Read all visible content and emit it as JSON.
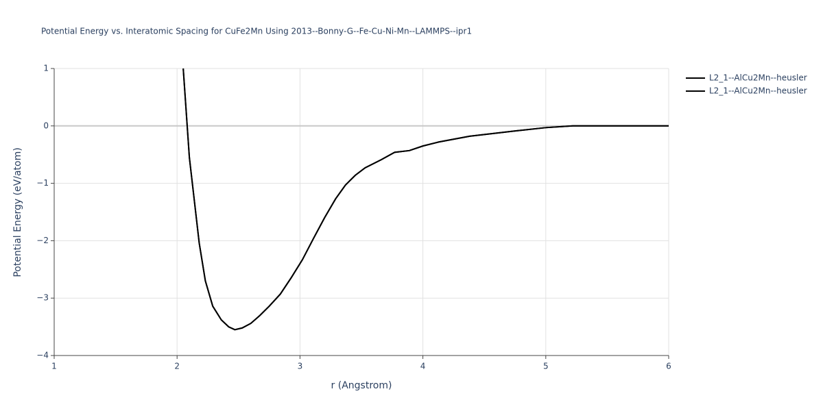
{
  "chart_data": {
    "type": "line",
    "title": "Potential Energy vs. Interatomic Spacing for CuFe2Mn Using 2013--Bonny-G--Fe-Cu-Ni-Mn--LAMMPS--ipr1",
    "x_label": "r (Angstrom)",
    "y_label": "Potential Energy (eV/atom)",
    "x": [
      2.05,
      2.1,
      2.18,
      2.23,
      2.29,
      2.36,
      2.42,
      2.47,
      2.53,
      2.6,
      2.67,
      2.75,
      2.84,
      2.93,
      3.02,
      3.11,
      3.2,
      3.29,
      3.37,
      3.45,
      3.53,
      3.66,
      3.77,
      3.89,
      4.0,
      4.13,
      4.38,
      4.74,
      5.0,
      5.22,
      5.58,
      6.0
    ],
    "series": [
      {
        "name": "L2_1--AlCu2Mn--heusler",
        "color": "#000000",
        "values": [
          1.0,
          -0.55,
          -2.04,
          -2.7,
          -3.14,
          -3.38,
          -3.5,
          -3.55,
          -3.52,
          -3.44,
          -3.31,
          -3.14,
          -2.93,
          -2.64,
          -2.33,
          -1.96,
          -1.6,
          -1.27,
          -1.03,
          -0.86,
          -0.73,
          -0.59,
          -0.46,
          -0.43,
          -0.35,
          -0.28,
          -0.18,
          -0.09,
          -0.03,
          0.0,
          0.0,
          0.0
        ]
      },
      {
        "name": "L2_1--AlCu2Mn--heusler",
        "color": "#000000",
        "values": [
          1.0,
          -0.55,
          -2.04,
          -2.7,
          -3.14,
          -3.38,
          -3.5,
          -3.55,
          -3.52,
          -3.44,
          -3.31,
          -3.14,
          -2.93,
          -2.64,
          -2.33,
          -1.96,
          -1.6,
          -1.27,
          -1.03,
          -0.86,
          -0.73,
          -0.59,
          -0.46,
          -0.43,
          -0.35,
          -0.28,
          -0.18,
          -0.09,
          -0.03,
          0.0,
          0.0,
          0.0
        ]
      }
    ],
    "xlim": [
      1,
      6
    ],
    "xticks": [
      1,
      2,
      3,
      4,
      5,
      6
    ],
    "ylim": [
      -4,
      1
    ],
    "yticks": [
      {
        "value": -4,
        "label": "−4"
      },
      {
        "value": -3,
        "label": "−3"
      },
      {
        "value": -2,
        "label": "−2"
      },
      {
        "value": -1,
        "label": "−1"
      },
      0,
      1
    ],
    "grid": true,
    "legend": "top-right"
  }
}
